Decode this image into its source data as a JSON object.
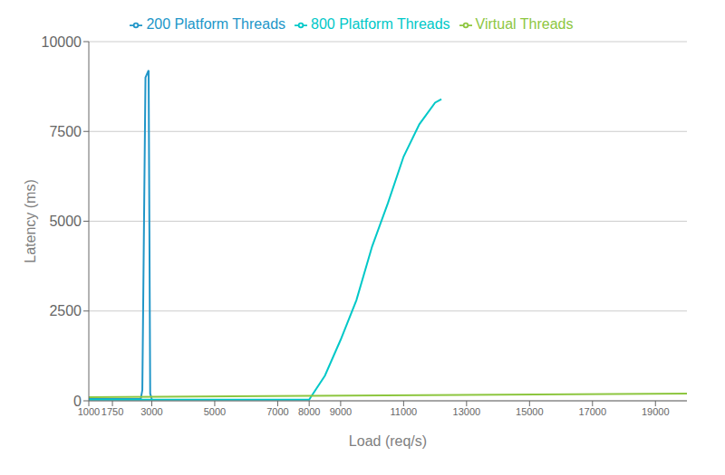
{
  "chart_data": {
    "type": "line",
    "xlabel": "Load (req/s)",
    "ylabel": "Latency (ms)",
    "xlim": [
      1000,
      20000
    ],
    "ylim": [
      0,
      10000
    ],
    "xticks": [
      1000,
      1750,
      3000,
      5000,
      7000,
      8000,
      9000,
      11000,
      13000,
      15000,
      17000,
      19000
    ],
    "yticks": [
      0,
      2500,
      5000,
      7500,
      10000
    ],
    "grid": true,
    "legend": "top",
    "series": [
      {
        "name": "200 Platform Threads",
        "color": "#2196c8",
        "x": [
          1000,
          2650,
          2700,
          2800,
          2900,
          2950,
          3000
        ],
        "values": [
          50,
          50,
          300,
          9000,
          9200,
          200,
          50
        ]
      },
      {
        "name": "800 Platform Threads",
        "color": "#00c8c8",
        "x": [
          1000,
          8000,
          8050,
          8500,
          9000,
          9500,
          10000,
          10500,
          11000,
          11500,
          12000,
          12200
        ],
        "values": [
          30,
          30,
          100,
          700,
          1700,
          2800,
          4300,
          5500,
          6800,
          7700,
          8300,
          8400
        ]
      },
      {
        "name": "Virtual Threads",
        "color": "#8dc63f",
        "x": [
          1000,
          20000
        ],
        "values": [
          100,
          200
        ]
      }
    ]
  }
}
